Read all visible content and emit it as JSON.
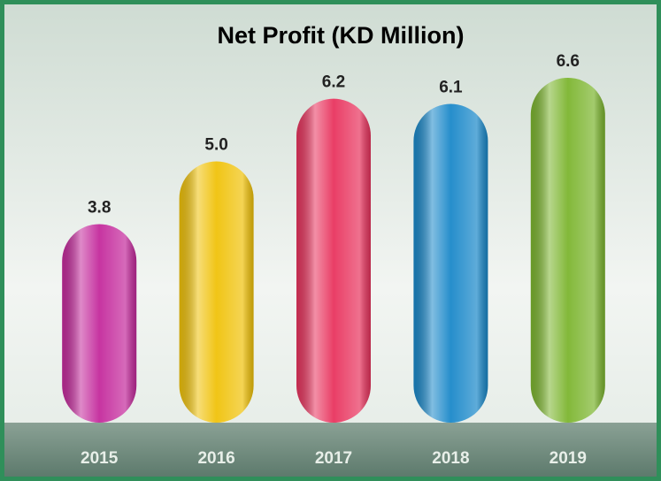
{
  "chart_data": {
    "type": "bar",
    "title": "Net Profit (KD Million)",
    "categories": [
      "2015",
      "2016",
      "2017",
      "2018",
      "2019"
    ],
    "values": [
      3.8,
      5.0,
      6.2,
      6.1,
      6.6
    ],
    "value_labels": [
      "3.8",
      "5.0",
      "6.2",
      "6.1",
      "6.6"
    ],
    "colors": [
      "#c42a9c",
      "#f0c20a",
      "#e8345e",
      "#1a88c9",
      "#7cb52f"
    ]
  }
}
